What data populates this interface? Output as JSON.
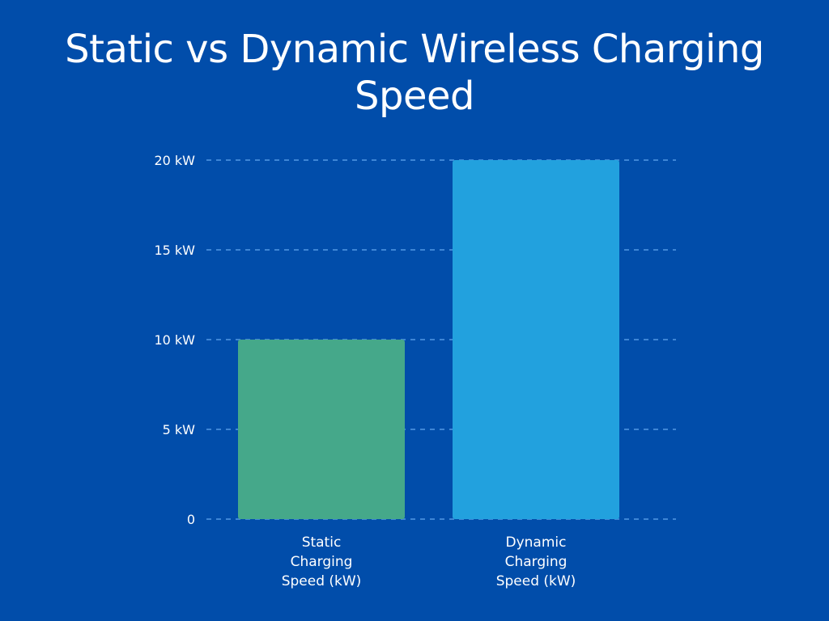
{
  "chart_data": {
    "type": "bar",
    "title": "Static vs Dynamic Wireless Charging Speed",
    "categories": [
      "Static Charging Speed (kW)",
      "Dynamic Charging Speed (kW)"
    ],
    "category_lines": [
      [
        "Static",
        "Charging",
        "Speed (kW)"
      ],
      [
        "Dynamic",
        "Charging",
        "Speed (kW)"
      ]
    ],
    "values": [
      10,
      20
    ],
    "bar_colors": [
      "#45A88A",
      "#22A1DE"
    ],
    "ylim": [
      0,
      20
    ],
    "yticks": [
      0,
      5,
      10,
      15,
      20
    ],
    "ytick_labels": [
      "0",
      "5 kW",
      "10 kW",
      "15 kW",
      "20 kW"
    ],
    "grid": true,
    "xlabel": "",
    "ylabel": ""
  },
  "colors": {
    "background": "#014DAA",
    "grid": "#3E86D6",
    "text": "#FFFFFF"
  }
}
